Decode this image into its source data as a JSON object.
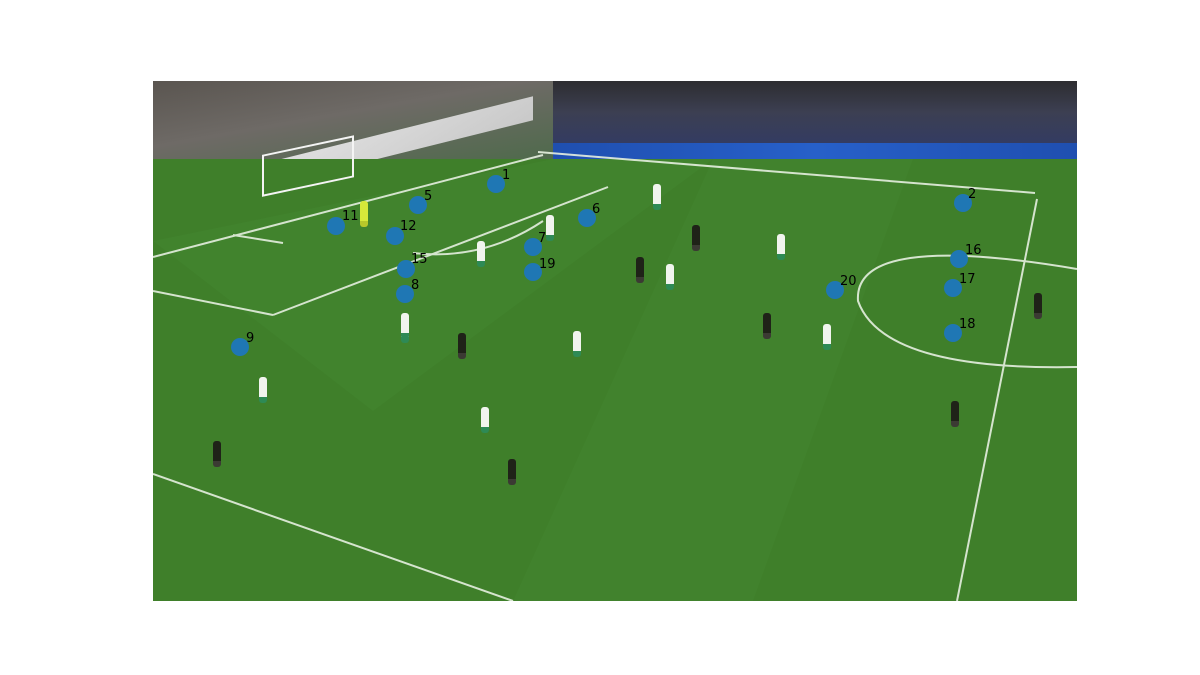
{
  "scene": {
    "description_free": true,
    "markers": [
      {
        "id": "1"
      },
      {
        "id": "2"
      },
      {
        "id": "5"
      },
      {
        "id": "6"
      },
      {
        "id": "7"
      },
      {
        "id": "8"
      },
      {
        "id": "9"
      },
      {
        "id": "11"
      },
      {
        "id": "12"
      },
      {
        "id": "15"
      },
      {
        "id": "16"
      },
      {
        "id": "17"
      },
      {
        "id": "18"
      },
      {
        "id": "19"
      },
      {
        "id": "20"
      }
    ],
    "colors": {
      "marker": "#1f77b4",
      "pitch": "#3f7f2a",
      "lines": "#e6efe0"
    }
  }
}
